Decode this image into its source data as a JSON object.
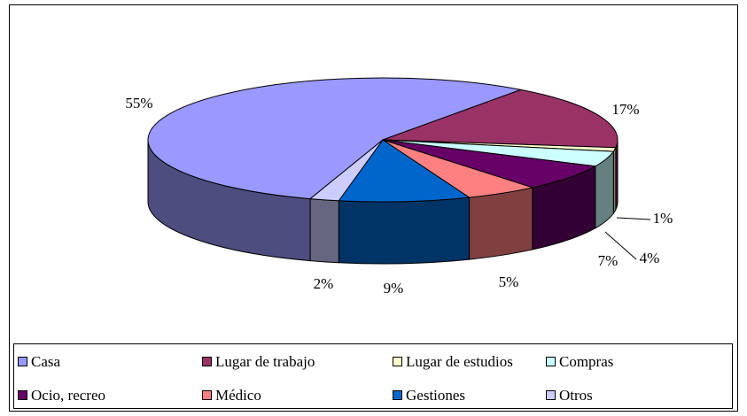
{
  "chart_data": {
    "type": "pie",
    "categories": [
      "Casa",
      "Lugar de trabajo",
      "Lugar de estudios",
      "Compras",
      "Ocio, recreo",
      "Médico",
      "Gestiones",
      "Otros"
    ],
    "values": [
      55,
      17,
      1,
      4,
      7,
      5,
      9,
      2
    ],
    "value_labels": [
      "55%",
      "17%",
      "1%",
      "4%",
      "7%",
      "5%",
      "9%",
      "2%"
    ],
    "colors": [
      "#9999ff",
      "#993366",
      "#ffffcc",
      "#ccffff",
      "#660066",
      "#ff8080",
      "#0066cc",
      "#ccccff"
    ],
    "legend": "bottom"
  }
}
